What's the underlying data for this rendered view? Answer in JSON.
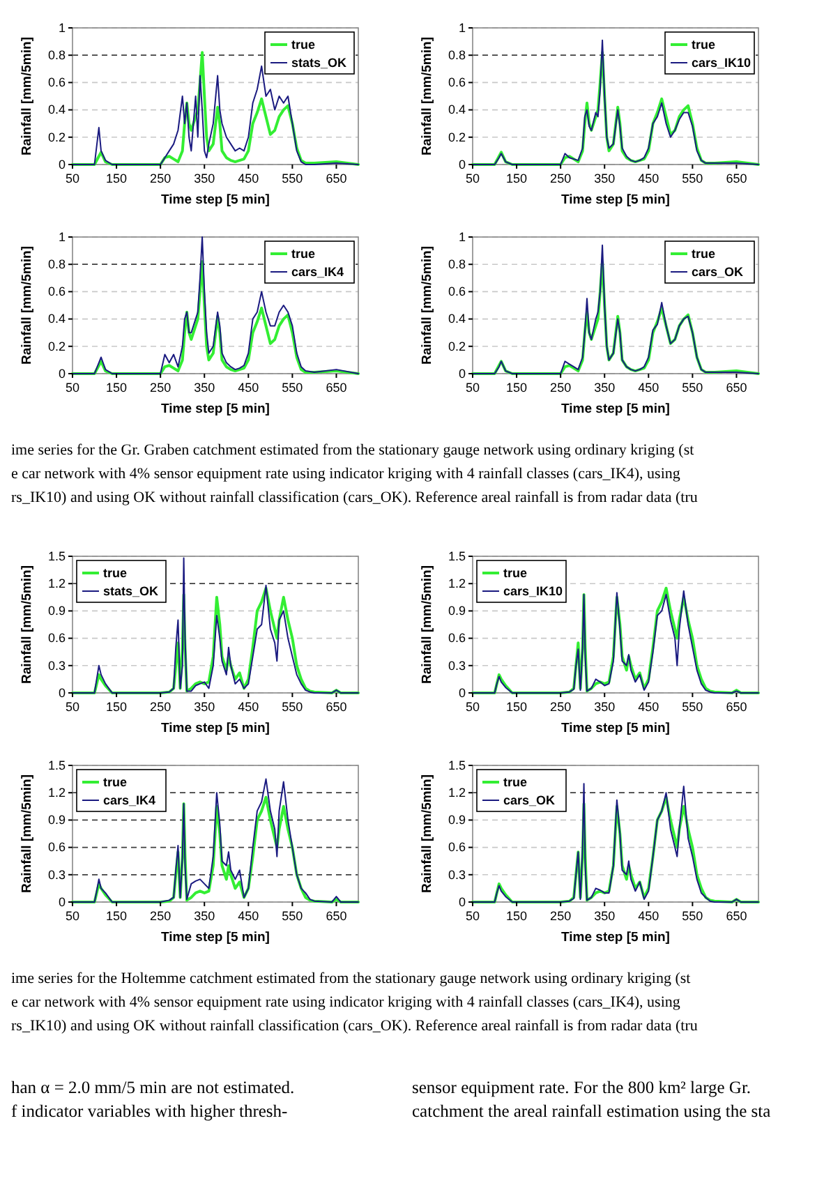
{
  "chart_data": [
    {
      "type": "line",
      "xlabel": "Time step [5 min]",
      "ylabel": "Rainfall [mm/5min]",
      "xlim": [
        50,
        700
      ],
      "xticks": [
        50,
        150,
        250,
        350,
        450,
        550,
        650
      ],
      "ylim": [
        0,
        1
      ],
      "yticks": [
        0,
        0.2,
        0.4,
        0.6,
        0.8,
        1
      ],
      "grid": "y",
      "legend": "top right",
      "marker": "none",
      "ref_lines": [
        {
          "axis": "y",
          "value": 0.8,
          "line_style": "dashed",
          "color": "#000000"
        }
      ],
      "x": [
        50,
        80,
        100,
        110,
        115,
        125,
        140,
        200,
        250,
        260,
        270,
        280,
        290,
        300,
        305,
        310,
        315,
        320,
        330,
        335,
        340,
        345,
        350,
        355,
        360,
        370,
        380,
        385,
        390,
        400,
        410,
        420,
        430,
        440,
        450,
        460,
        470,
        480,
        490,
        500,
        510,
        520,
        530,
        540,
        550,
        560,
        570,
        580,
        600,
        650,
        700
      ],
      "series": [
        {
          "name": "true",
          "color": "#33ee33",
          "values": [
            0,
            0,
            0,
            0.06,
            0.09,
            0.02,
            0,
            0,
            0,
            0.05,
            0.06,
            0.04,
            0.02,
            0.1,
            0.3,
            0.45,
            0.3,
            0.25,
            0.35,
            0.4,
            0.6,
            0.82,
            0.5,
            0.2,
            0.1,
            0.15,
            0.42,
            0.3,
            0.1,
            0.05,
            0.03,
            0.02,
            0.03,
            0.04,
            0.1,
            0.3,
            0.38,
            0.48,
            0.35,
            0.22,
            0.25,
            0.35,
            0.4,
            0.43,
            0.3,
            0.12,
            0.03,
            0.01,
            0.01,
            0.02,
            0
          ]
        },
        {
          "name": "stats_OK",
          "color": "#1a1a80",
          "values": [
            0,
            0,
            0,
            0.27,
            0.1,
            0.03,
            0,
            0,
            0,
            0.05,
            0.1,
            0.15,
            0.25,
            0.5,
            0.3,
            0.45,
            0.2,
            0.1,
            0.5,
            0.2,
            0.65,
            0.4,
            0.1,
            0.05,
            0.15,
            0.3,
            0.65,
            0.4,
            0.3,
            0.2,
            0.15,
            0.1,
            0.12,
            0.1,
            0.2,
            0.45,
            0.55,
            0.72,
            0.5,
            0.55,
            0.4,
            0.5,
            0.45,
            0.5,
            0.3,
            0.1,
            0.02,
            0,
            0,
            0.01,
            0
          ]
        }
      ]
    },
    {
      "type": "line",
      "xlabel": "Time step [5 min]",
      "ylabel": "Rainfall [mm/5min]",
      "xlim": [
        50,
        700
      ],
      "xticks": [
        50,
        150,
        250,
        350,
        450,
        550,
        650
      ],
      "ylim": [
        0,
        1
      ],
      "yticks": [
        0,
        0.2,
        0.4,
        0.6,
        0.8,
        1
      ],
      "grid": "y",
      "legend": "top right",
      "marker": "none",
      "ref_lines": [
        {
          "axis": "y",
          "value": 0.8,
          "line_style": "dashed",
          "color": "#000000"
        }
      ],
      "x": [
        50,
        80,
        100,
        110,
        115,
        125,
        140,
        200,
        250,
        260,
        270,
        280,
        290,
        300,
        305,
        310,
        315,
        320,
        330,
        335,
        340,
        345,
        350,
        355,
        360,
        370,
        380,
        385,
        390,
        400,
        410,
        420,
        430,
        440,
        450,
        460,
        470,
        480,
        490,
        500,
        510,
        520,
        530,
        540,
        550,
        560,
        570,
        580,
        600,
        650,
        700
      ],
      "series": [
        {
          "name": "true",
          "color": "#33ee33",
          "values": [
            0,
            0,
            0,
            0.06,
            0.09,
            0.02,
            0,
            0,
            0,
            0.05,
            0.06,
            0.04,
            0.02,
            0.1,
            0.3,
            0.45,
            0.3,
            0.25,
            0.35,
            0.4,
            0.6,
            0.82,
            0.5,
            0.2,
            0.1,
            0.15,
            0.42,
            0.3,
            0.1,
            0.05,
            0.03,
            0.02,
            0.03,
            0.04,
            0.1,
            0.3,
            0.38,
            0.48,
            0.35,
            0.22,
            0.25,
            0.35,
            0.4,
            0.43,
            0.3,
            0.12,
            0.03,
            0.01,
            0.01,
            0.02,
            0
          ]
        },
        {
          "name": "cars_IK10",
          "color": "#1a1a80",
          "values": [
            0,
            0,
            0,
            0.05,
            0.08,
            0.02,
            0,
            0,
            0,
            0.08,
            0.05,
            0.04,
            0.03,
            0.12,
            0.35,
            0.4,
            0.28,
            0.25,
            0.38,
            0.35,
            0.55,
            0.91,
            0.5,
            0.2,
            0.12,
            0.15,
            0.4,
            0.28,
            0.12,
            0.06,
            0.03,
            0.02,
            0.03,
            0.05,
            0.12,
            0.3,
            0.35,
            0.45,
            0.3,
            0.2,
            0.25,
            0.33,
            0.38,
            0.38,
            0.28,
            0.1,
            0.03,
            0.01,
            0.01,
            0.01,
            0
          ]
        }
      ]
    },
    {
      "type": "line",
      "xlabel": "Time step [5 min]",
      "ylabel": "Rainfall [mm/5min]",
      "xlim": [
        50,
        700
      ],
      "xticks": [
        50,
        150,
        250,
        350,
        450,
        550,
        650
      ],
      "ylim": [
        0,
        1
      ],
      "yticks": [
        0,
        0.2,
        0.4,
        0.6,
        0.8,
        1
      ],
      "grid": "y",
      "legend": "top right",
      "marker": "none",
      "ref_lines": [
        {
          "axis": "y",
          "value": 0.8,
          "line_style": "dashed",
          "color": "#000000"
        }
      ],
      "x": [
        50,
        80,
        100,
        110,
        115,
        125,
        140,
        200,
        250,
        260,
        270,
        280,
        290,
        300,
        305,
        310,
        315,
        320,
        330,
        335,
        340,
        345,
        350,
        355,
        360,
        370,
        380,
        385,
        390,
        400,
        410,
        420,
        430,
        440,
        450,
        460,
        470,
        480,
        490,
        500,
        510,
        520,
        530,
        540,
        550,
        560,
        570,
        580,
        600,
        650,
        700
      ],
      "series": [
        {
          "name": "true",
          "color": "#33ee33",
          "values": [
            0,
            0,
            0,
            0.06,
            0.09,
            0.02,
            0,
            0,
            0,
            0.05,
            0.06,
            0.04,
            0.02,
            0.1,
            0.3,
            0.45,
            0.3,
            0.25,
            0.35,
            0.4,
            0.6,
            0.82,
            0.5,
            0.2,
            0.1,
            0.15,
            0.42,
            0.3,
            0.1,
            0.05,
            0.03,
            0.02,
            0.03,
            0.04,
            0.1,
            0.3,
            0.38,
            0.48,
            0.35,
            0.22,
            0.25,
            0.35,
            0.4,
            0.43,
            0.3,
            0.12,
            0.03,
            0.01,
            0.01,
            0.02,
            0
          ]
        },
        {
          "name": "cars_IK4",
          "color": "#1a1a80",
          "values": [
            0,
            0,
            0,
            0.08,
            0.12,
            0.03,
            0,
            0,
            0,
            0.14,
            0.08,
            0.14,
            0.05,
            0.2,
            0.4,
            0.45,
            0.3,
            0.3,
            0.4,
            0.45,
            0.7,
            1.0,
            0.6,
            0.3,
            0.15,
            0.2,
            0.45,
            0.35,
            0.15,
            0.08,
            0.05,
            0.03,
            0.04,
            0.06,
            0.15,
            0.4,
            0.45,
            0.6,
            0.45,
            0.35,
            0.35,
            0.45,
            0.5,
            0.45,
            0.35,
            0.15,
            0.05,
            0.02,
            0.01,
            0.03,
            0
          ]
        }
      ]
    },
    {
      "type": "line",
      "xlabel": "Time step [5 min]",
      "ylabel": "Rainfall [mm/5min]",
      "xlim": [
        50,
        700
      ],
      "xticks": [
        50,
        150,
        250,
        350,
        450,
        550,
        650
      ],
      "ylim": [
        0,
        1
      ],
      "yticks": [
        0,
        0.2,
        0.4,
        0.6,
        0.8,
        1
      ],
      "grid": "y",
      "legend": "top right",
      "marker": "none",
      "x": [
        50,
        80,
        100,
        110,
        115,
        125,
        140,
        200,
        250,
        260,
        270,
        280,
        290,
        300,
        305,
        310,
        315,
        320,
        330,
        335,
        340,
        345,
        350,
        355,
        360,
        370,
        380,
        385,
        390,
        400,
        410,
        420,
        430,
        440,
        450,
        460,
        470,
        480,
        490,
        500,
        510,
        520,
        530,
        540,
        550,
        560,
        570,
        580,
        600,
        650,
        700
      ],
      "series": [
        {
          "name": "true",
          "color": "#33ee33",
          "values": [
            0,
            0,
            0,
            0.06,
            0.09,
            0.02,
            0,
            0,
            0,
            0.05,
            0.06,
            0.04,
            0.02,
            0.1,
            0.3,
            0.45,
            0.3,
            0.25,
            0.35,
            0.4,
            0.6,
            0.82,
            0.5,
            0.2,
            0.1,
            0.15,
            0.42,
            0.3,
            0.1,
            0.05,
            0.03,
            0.02,
            0.03,
            0.04,
            0.1,
            0.3,
            0.38,
            0.48,
            0.35,
            0.22,
            0.25,
            0.35,
            0.4,
            0.43,
            0.3,
            0.12,
            0.03,
            0.01,
            0.01,
            0.02,
            0
          ]
        },
        {
          "name": "cars_OK",
          "color": "#1a1a80",
          "values": [
            0,
            0,
            0,
            0.05,
            0.09,
            0.02,
            0,
            0,
            0,
            0.09,
            0.07,
            0.05,
            0.03,
            0.12,
            0.3,
            0.55,
            0.3,
            0.25,
            0.4,
            0.45,
            0.6,
            0.94,
            0.5,
            0.2,
            0.1,
            0.15,
            0.4,
            0.3,
            0.1,
            0.05,
            0.03,
            0.02,
            0.03,
            0.05,
            0.12,
            0.32,
            0.36,
            0.52,
            0.35,
            0.22,
            0.25,
            0.35,
            0.4,
            0.42,
            0.3,
            0.12,
            0.03,
            0.01,
            0.01,
            0.01,
            0
          ]
        }
      ]
    },
    {
      "type": "other",
      "annotations": [
        "ime series for the Gr. Graben catchment estimated from the stationary gauge network using ordinary kriging (st",
        "e car network with 4% sensor equipment rate using indicator kriging with 4 rainfall classes (cars_IK4), using",
        "rs_IK10) and using OK without rainfall classification (cars_OK). Reference areal rainfall is from radar data (tru"
      ]
    },
    {
      "type": "line",
      "xlabel": "Time step [5 min]",
      "ylabel": "Rainfall [mm/5min]",
      "xlim": [
        50,
        700
      ],
      "xticks": [
        50,
        150,
        250,
        350,
        450,
        550,
        650
      ],
      "ylim": [
        0,
        1.5
      ],
      "yticks": [
        0,
        0.3,
        0.6,
        0.9,
        1.2,
        1.5
      ],
      "grid": "y",
      "legend": "top left",
      "marker": "none",
      "ref_lines": [
        {
          "axis": "y",
          "value": 1.2,
          "line_style": "dashed",
          "color": "#000000"
        }
      ],
      "x": [
        50,
        100,
        105,
        110,
        115,
        125,
        140,
        200,
        250,
        270,
        280,
        285,
        290,
        295,
        300,
        303,
        306,
        310,
        320,
        330,
        340,
        350,
        360,
        370,
        378,
        385,
        390,
        400,
        405,
        410,
        420,
        430,
        440,
        450,
        460,
        470,
        480,
        490,
        500,
        510,
        515,
        520,
        530,
        540,
        550,
        560,
        570,
        580,
        590,
        600,
        640,
        650,
        660,
        700
      ],
      "series": [
        {
          "name": "true",
          "color": "#33ee33",
          "values": [
            0,
            0,
            0.1,
            0.2,
            0.15,
            0.08,
            0,
            0,
            0,
            0.01,
            0.05,
            0.3,
            0.55,
            0.05,
            0.5,
            1.08,
            0.5,
            0.02,
            0.05,
            0.1,
            0.12,
            0.1,
            0.12,
            0.4,
            1.05,
            0.75,
            0.4,
            0.25,
            0.4,
            0.3,
            0.15,
            0.22,
            0.05,
            0.15,
            0.5,
            0.9,
            1.0,
            1.15,
            0.9,
            0.7,
            0.6,
            0.8,
            1.05,
            0.8,
            0.6,
            0.3,
            0.15,
            0.05,
            0.02,
            0.01,
            0,
            0.03,
            0,
            0
          ]
        },
        {
          "name": "stats_OK",
          "color": "#1a1a80",
          "values": [
            0,
            0,
            0.15,
            0.3,
            0.2,
            0.1,
            0,
            0,
            0,
            0.01,
            0.05,
            0.5,
            0.8,
            0.05,
            0.3,
            1.48,
            0.6,
            0.02,
            0.02,
            0.08,
            0.1,
            0.12,
            0.05,
            0.3,
            0.85,
            0.6,
            0.35,
            0.2,
            0.5,
            0.3,
            0.1,
            0.15,
            0.05,
            0.1,
            0.4,
            0.7,
            0.75,
            1.18,
            0.7,
            0.55,
            0.35,
            0.8,
            0.9,
            0.6,
            0.4,
            0.2,
            0.1,
            0.03,
            0.01,
            0,
            0,
            0.03,
            0,
            0
          ]
        }
      ]
    },
    {
      "type": "line",
      "xlabel": "Time step [5 min]",
      "ylabel": "Rainfall [mm/5min]",
      "xlim": [
        50,
        700
      ],
      "xticks": [
        50,
        150,
        250,
        350,
        450,
        550,
        650
      ],
      "ylim": [
        0,
        1.5
      ],
      "yticks": [
        0,
        0.3,
        0.6,
        0.9,
        1.2,
        1.5
      ],
      "grid": "y",
      "legend": "top left",
      "marker": "none",
      "x": [
        50,
        100,
        105,
        110,
        115,
        125,
        140,
        200,
        250,
        270,
        280,
        285,
        290,
        295,
        300,
        303,
        306,
        310,
        320,
        330,
        340,
        350,
        360,
        370,
        378,
        385,
        390,
        400,
        405,
        410,
        420,
        430,
        440,
        450,
        460,
        470,
        480,
        490,
        500,
        510,
        515,
        520,
        530,
        540,
        550,
        560,
        570,
        580,
        590,
        600,
        640,
        650,
        660,
        700
      ],
      "series": [
        {
          "name": "true",
          "color": "#33ee33",
          "values": [
            0,
            0,
            0.1,
            0.2,
            0.15,
            0.08,
            0,
            0,
            0,
            0.01,
            0.05,
            0.3,
            0.55,
            0.05,
            0.5,
            1.08,
            0.5,
            0.02,
            0.05,
            0.1,
            0.12,
            0.1,
            0.12,
            0.4,
            1.05,
            0.75,
            0.4,
            0.25,
            0.4,
            0.3,
            0.15,
            0.22,
            0.05,
            0.15,
            0.5,
            0.9,
            1.0,
            1.15,
            0.9,
            0.7,
            0.6,
            0.8,
            1.05,
            0.8,
            0.6,
            0.3,
            0.15,
            0.05,
            0.02,
            0.01,
            0,
            0.03,
            0,
            0
          ]
        },
        {
          "name": "cars_IK10",
          "color": "#1a1a80",
          "values": [
            0,
            0,
            0.1,
            0.18,
            0.12,
            0.06,
            0,
            0,
            0,
            0.01,
            0.04,
            0.3,
            0.48,
            0.03,
            0.5,
            1.08,
            0.4,
            0.02,
            0.05,
            0.15,
            0.12,
            0.08,
            0.1,
            0.35,
            1.1,
            0.7,
            0.35,
            0.3,
            0.42,
            0.25,
            0.12,
            0.2,
            0.03,
            0.12,
            0.45,
            0.85,
            0.9,
            1.08,
            0.8,
            0.6,
            0.3,
            0.7,
            1.12,
            0.75,
            0.5,
            0.25,
            0.1,
            0.03,
            0.01,
            0,
            0,
            0.02,
            0,
            0
          ]
        }
      ]
    },
    {
      "type": "line",
      "xlabel": "Time step [5 min]",
      "ylabel": "Rainfall [mm/5min]",
      "xlim": [
        50,
        700
      ],
      "xticks": [
        50,
        150,
        250,
        350,
        450,
        550,
        650
      ],
      "ylim": [
        0,
        1.5
      ],
      "yticks": [
        0,
        0.3,
        0.6,
        0.9,
        1.2,
        1.5
      ],
      "grid": "y",
      "legend": "top left",
      "marker": "none",
      "ref_lines": [
        {
          "axis": "y",
          "value": 0.3,
          "line_style": "dashed",
          "color": "#000000"
        },
        {
          "axis": "y",
          "value": 0.6,
          "line_style": "dashed",
          "color": "#000000"
        },
        {
          "axis": "y",
          "value": 0.9,
          "line_style": "dashed",
          "color": "#000000"
        },
        {
          "axis": "y",
          "value": 1.2,
          "line_style": "dashed",
          "color": "#000000"
        }
      ],
      "x": [
        50,
        100,
        105,
        110,
        115,
        125,
        140,
        200,
        250,
        270,
        280,
        285,
        290,
        295,
        300,
        303,
        306,
        310,
        320,
        330,
        340,
        350,
        360,
        370,
        378,
        385,
        390,
        400,
        405,
        410,
        420,
        430,
        440,
        450,
        460,
        470,
        480,
        490,
        500,
        510,
        515,
        520,
        530,
        540,
        550,
        560,
        570,
        580,
        590,
        600,
        640,
        650,
        660,
        700
      ],
      "series": [
        {
          "name": "true",
          "color": "#33ee33",
          "values": [
            0,
            0,
            0.1,
            0.2,
            0.15,
            0.08,
            0,
            0,
            0,
            0.01,
            0.05,
            0.3,
            0.55,
            0.05,
            0.5,
            1.08,
            0.5,
            0.02,
            0.05,
            0.1,
            0.12,
            0.1,
            0.12,
            0.4,
            1.05,
            0.75,
            0.4,
            0.25,
            0.4,
            0.3,
            0.15,
            0.22,
            0.05,
            0.15,
            0.5,
            0.9,
            1.0,
            1.15,
            0.9,
            0.7,
            0.6,
            0.8,
            1.05,
            0.8,
            0.6,
            0.3,
            0.15,
            0.05,
            0.02,
            0.01,
            0,
            0.03,
            0,
            0
          ]
        },
        {
          "name": "cars_IK4",
          "color": "#1a1a80",
          "values": [
            0,
            0,
            0.12,
            0.25,
            0.15,
            0.1,
            0,
            0,
            0,
            0.02,
            0.05,
            0.35,
            0.62,
            0.05,
            0.5,
            1.08,
            0.4,
            0.03,
            0.2,
            0.23,
            0.25,
            0.2,
            0.15,
            0.5,
            1.2,
            0.85,
            0.45,
            0.4,
            0.55,
            0.35,
            0.25,
            0.35,
            0.05,
            0.15,
            0.6,
            1.0,
            1.1,
            1.35,
            1.0,
            0.8,
            0.5,
            1.0,
            1.32,
            0.9,
            0.6,
            0.3,
            0.15,
            0.1,
            0.03,
            0.01,
            0,
            0.06,
            0,
            0
          ]
        }
      ]
    },
    {
      "type": "line",
      "xlabel": "Time step [5 min]",
      "ylabel": "Rainfall [mm/5min]",
      "xlim": [
        50,
        700
      ],
      "xticks": [
        50,
        150,
        250,
        350,
        450,
        550,
        650
      ],
      "ylim": [
        0,
        1.5
      ],
      "yticks": [
        0,
        0.3,
        0.6,
        0.9,
        1.2,
        1.5
      ],
      "grid": "y",
      "legend": "top left",
      "marker": "none",
      "ref_lines": [
        {
          "axis": "y",
          "value": 1.2,
          "line_style": "dashed",
          "color": "#000000"
        }
      ],
      "x": [
        50,
        100,
        105,
        110,
        115,
        125,
        140,
        200,
        250,
        270,
        280,
        285,
        290,
        295,
        300,
        303,
        306,
        310,
        320,
        330,
        340,
        350,
        360,
        370,
        378,
        385,
        390,
        400,
        405,
        410,
        420,
        430,
        440,
        450,
        460,
        470,
        480,
        490,
        500,
        510,
        515,
        520,
        530,
        540,
        550,
        560,
        570,
        580,
        590,
        600,
        640,
        650,
        660,
        700
      ],
      "series": [
        {
          "name": "true",
          "color": "#33ee33",
          "values": [
            0,
            0,
            0.1,
            0.2,
            0.15,
            0.08,
            0,
            0,
            0,
            0.01,
            0.05,
            0.3,
            0.55,
            0.05,
            0.5,
            1.08,
            0.5,
            0.02,
            0.05,
            0.1,
            0.12,
            0.1,
            0.12,
            0.4,
            1.05,
            0.75,
            0.4,
            0.25,
            0.4,
            0.3,
            0.15,
            0.22,
            0.05,
            0.15,
            0.5,
            0.9,
            1.0,
            1.15,
            0.9,
            0.7,
            0.6,
            0.8,
            1.05,
            0.8,
            0.6,
            0.3,
            0.15,
            0.05,
            0.02,
            0.01,
            0,
            0.03,
            0,
            0
          ]
        },
        {
          "name": "cars_OK",
          "color": "#1a1a80",
          "values": [
            0,
            0,
            0.1,
            0.18,
            0.12,
            0.06,
            0,
            0,
            0,
            0.01,
            0.04,
            0.3,
            0.55,
            0.03,
            0.6,
            1.3,
            0.4,
            0.02,
            0.05,
            0.15,
            0.13,
            0.1,
            0.1,
            0.4,
            1.12,
            0.75,
            0.35,
            0.3,
            0.45,
            0.25,
            0.12,
            0.22,
            0.03,
            0.12,
            0.5,
            0.9,
            1.0,
            1.2,
            0.8,
            0.6,
            0.5,
            0.8,
            1.27,
            0.7,
            0.5,
            0.25,
            0.1,
            0.05,
            0.01,
            0,
            0,
            0.03,
            0,
            0
          ]
        }
      ]
    },
    {
      "type": "other",
      "annotations": [
        "ime series for the Holtemme catchment estimated from the stationary gauge network using ordinary kriging (st",
        "e car network with 4% sensor equipment rate using indicator kriging with 4 rainfall classes (cars_IK4), using",
        "rs_IK10) and using OK without rainfall classification (cars_OK). Reference areal rainfall is from radar data (tru"
      ]
    },
    {
      "type": "other",
      "annotations": [
        "han α = 2.0 mm/5 min are not estimated.",
        "f indicator variables with higher thresh-",
        "sensor equipment rate.  For the 800 km² large Gr.",
        "catchment the areal rainfall estimation using the sta"
      ]
    }
  ]
}
